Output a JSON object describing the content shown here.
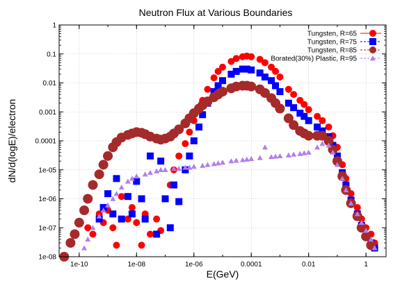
{
  "chart_data": {
    "type": "scatter",
    "title": "Neutron Flux at Various Boundaries",
    "xlabel": "E(GeV)",
    "ylabel": "dN/d(logE)/electron",
    "xscale": "log",
    "yscale": "log",
    "xlim": [
      2e-11,
      5
    ],
    "ylim": [
      1e-08,
      1
    ],
    "grid": true,
    "legend_position": "top-right",
    "x_ticks": [
      "1e-10",
      "1e-08",
      "1e-06",
      "0.0001",
      "0.01",
      "1"
    ],
    "y_ticks": [
      "1e-08",
      "1e-07",
      "1e-06",
      "1e-05",
      "0.0001",
      "0.001",
      "0.01",
      "0.1",
      "1"
    ],
    "series": [
      {
        "name": "Tungsten, R=65",
        "color": "#ff0000",
        "marker": "circle",
        "points": [
          [
            2e-10,
            1e-07
          ],
          [
            3e-10,
            6e-08
          ],
          [
            5e-10,
            3e-07
          ],
          [
            7e-10,
            1.5e-07
          ],
          [
            1e-09,
            4e-07
          ],
          [
            1.5e-09,
            1e-07
          ],
          [
            2e-09,
            2.5e-08
          ],
          [
            3e-09,
            1.2e-06
          ],
          [
            5e-09,
            2e-07
          ],
          [
            7e-09,
            5e-07
          ],
          [
            1e-08,
            1.5e-07
          ],
          [
            1.5e-08,
            2.5e-08
          ],
          [
            2e-08,
            3e-07
          ],
          [
            3e-08,
            6e-08
          ],
          [
            5e-08,
            2e-07
          ],
          [
            7e-08,
            8e-08
          ],
          [
            1e-07,
            1e-06
          ],
          [
            1.5e-07,
            3e-06
          ],
          [
            2e-07,
            1e-05
          ],
          [
            3e-07,
            3e-05
          ],
          [
            5e-07,
            8e-05
          ],
          [
            7e-07,
            0.0002
          ],
          [
            1e-06,
            0.0005
          ],
          [
            1.5e-06,
            0.0012
          ],
          [
            2e-06,
            0.0025
          ],
          [
            3e-06,
            0.006
          ],
          [
            5e-06,
            0.015
          ],
          [
            7e-06,
            0.025
          ],
          [
            1e-05,
            0.035
          ],
          [
            2e-05,
            0.055
          ],
          [
            3e-05,
            0.07
          ],
          [
            5e-05,
            0.08
          ],
          [
            7e-05,
            0.085
          ],
          [
            0.0001,
            0.08
          ],
          [
            0.0002,
            0.065
          ],
          [
            0.0003,
            0.05
          ],
          [
            0.0005,
            0.035
          ],
          [
            0.0007,
            0.025
          ],
          [
            0.001,
            0.016
          ],
          [
            0.002,
            0.006
          ],
          [
            0.003,
            0.004
          ],
          [
            0.005,
            0.0025
          ],
          [
            0.007,
            0.0018
          ],
          [
            0.01,
            0.0012
          ],
          [
            0.02,
            0.0007
          ],
          [
            0.03,
            0.0005
          ],
          [
            0.05,
            0.0003
          ],
          [
            0.07,
            0.00015
          ],
          [
            0.1,
            6e-05
          ],
          [
            0.15,
            1.5e-05
          ],
          [
            0.2,
            5e-06
          ],
          [
            0.3,
            1.5e-06
          ],
          [
            0.5,
            5e-07
          ],
          [
            0.7,
            2e-07
          ],
          [
            1,
            1e-07
          ],
          [
            1.5,
            6e-08
          ],
          [
            2,
            3e-08
          ]
        ]
      },
      {
        "name": "Tungsten, R=75",
        "color": "#0000ff",
        "marker": "square",
        "points": [
          [
            5e-10,
            2e-07
          ],
          [
            7e-10,
            5e-07
          ],
          [
            1e-09,
            1.5e-06
          ],
          [
            1.5e-09,
            3e-07
          ],
          [
            2e-09,
            5e-06
          ],
          [
            3e-09,
            2e-07
          ],
          [
            5e-09,
            1.2e-06
          ],
          [
            7e-09,
            3e-07
          ],
          [
            1e-08,
            4e-06
          ],
          [
            1.5e-08,
            1e-06
          ],
          [
            2e-08,
            2e-07
          ],
          [
            3e-08,
            3e-05
          ],
          [
            5e-08,
            6e-08
          ],
          [
            7e-08,
            2e-05
          ],
          [
            1e-07,
            1e-06
          ],
          [
            1.5e-07,
            1e-07
          ],
          [
            2e-07,
            3e-06
          ],
          [
            3e-07,
            8e-07
          ],
          [
            5e-07,
            1e-05
          ],
          [
            7e-07,
            3e-05
          ],
          [
            1e-06,
            0.0001
          ],
          [
            1.5e-06,
            0.0003
          ],
          [
            2e-06,
            0.0008
          ],
          [
            3e-06,
            0.002
          ],
          [
            5e-06,
            0.005
          ],
          [
            7e-06,
            0.008
          ],
          [
            1e-05,
            0.012
          ],
          [
            2e-05,
            0.02
          ],
          [
            3e-05,
            0.025
          ],
          [
            5e-05,
            0.03
          ],
          [
            7e-05,
            0.03
          ],
          [
            0.0001,
            0.028
          ],
          [
            0.0002,
            0.022
          ],
          [
            0.0003,
            0.016
          ],
          [
            0.0005,
            0.012
          ],
          [
            0.0007,
            0.008
          ],
          [
            0.001,
            0.005
          ],
          [
            0.002,
            0.002
          ],
          [
            0.003,
            0.0014
          ],
          [
            0.005,
            0.0009
          ],
          [
            0.007,
            0.0007
          ],
          [
            0.01,
            0.0005
          ],
          [
            0.02,
            0.0003
          ],
          [
            0.03,
            0.00022
          ],
          [
            0.05,
            0.00014
          ],
          [
            0.07,
            7e-05
          ],
          [
            0.1,
            3e-05
          ],
          [
            0.15,
            8e-06
          ],
          [
            0.2,
            3e-06
          ],
          [
            0.3,
            9e-07
          ],
          [
            0.5,
            3e-07
          ],
          [
            0.7,
            1.2e-07
          ],
          [
            1,
            5e-08
          ],
          [
            1.5,
            3e-08
          ],
          [
            2,
            2e-08
          ]
        ]
      },
      {
        "name": "Tungsten, R=85",
        "color": "#a52a2a",
        "marker": "circle",
        "points": [
          [
            3e-11,
            1e-08
          ],
          [
            5e-11,
            3e-08
          ],
          [
            7e-11,
            6e-08
          ],
          [
            1e-10,
            1.5e-07
          ],
          [
            1.5e-10,
            4e-07
          ],
          [
            2e-10,
            1e-06
          ],
          [
            3e-10,
            3e-06
          ],
          [
            5e-10,
            7e-06
          ],
          [
            7e-10,
            1.5e-05
          ],
          [
            1e-09,
            3e-05
          ],
          [
            1.5e-09,
            6e-05
          ],
          [
            2e-09,
            9e-05
          ],
          [
            3e-09,
            0.00013
          ],
          [
            5e-09,
            0.00016
          ],
          [
            7e-09,
            0.00018
          ],
          [
            1e-08,
            0.0002
          ],
          [
            1.5e-08,
            0.00019
          ],
          [
            2e-08,
            0.00017
          ],
          [
            3e-08,
            0.00014
          ],
          [
            5e-08,
            0.00012
          ],
          [
            7e-08,
            0.00011
          ],
          [
            1e-07,
            0.00012
          ],
          [
            1.5e-07,
            0.00014
          ],
          [
            2e-07,
            0.00018
          ],
          [
            3e-07,
            0.00025
          ],
          [
            5e-07,
            0.0004
          ],
          [
            7e-07,
            0.0006
          ],
          [
            1e-06,
            0.0009
          ],
          [
            1.5e-06,
            0.0013
          ],
          [
            2e-06,
            0.0017
          ],
          [
            3e-06,
            0.0023
          ],
          [
            5e-06,
            0.0032
          ],
          [
            7e-06,
            0.004
          ],
          [
            1e-05,
            0.005
          ],
          [
            2e-05,
            0.0065
          ],
          [
            3e-05,
            0.0075
          ],
          [
            5e-05,
            0.008
          ],
          [
            7e-05,
            0.008
          ],
          [
            0.0001,
            0.0075
          ],
          [
            0.0002,
            0.006
          ],
          [
            0.0003,
            0.0045
          ],
          [
            0.0005,
            0.003
          ],
          [
            0.0007,
            0.002
          ],
          [
            0.001,
            0.0013
          ],
          [
            0.002,
            0.0006
          ],
          [
            0.003,
            0.00035
          ],
          [
            0.005,
            0.00022
          ],
          [
            0.007,
            0.00018
          ],
          [
            0.01,
            0.00015
          ],
          [
            0.02,
            0.00015
          ],
          [
            0.03,
            0.00015
          ],
          [
            0.05,
            0.0001
          ],
          [
            0.07,
            5e-05
          ],
          [
            0.1,
            2e-05
          ],
          [
            0.15,
            6e-06
          ],
          [
            0.2,
            2e-06
          ],
          [
            0.3,
            7e-07
          ],
          [
            0.5,
            2.5e-07
          ],
          [
            0.7,
            1e-07
          ],
          [
            1,
            5e-08
          ],
          [
            1.5,
            2.5e-08
          ]
        ]
      },
      {
        "name": "Borated(30%) Plastic, R=95",
        "color": "#b27fee",
        "marker": "triangle",
        "points": [
          [
            1e-10,
            8e-09
          ],
          [
            1.5e-10,
            2e-08
          ],
          [
            2e-10,
            4e-08
          ],
          [
            3e-10,
            1e-07
          ],
          [
            5e-10,
            2.5e-07
          ],
          [
            7e-10,
            4e-07
          ],
          [
            1e-09,
            6e-07
          ],
          [
            1.5e-09,
            1e-06
          ],
          [
            2e-09,
            1.5e-06
          ],
          [
            3e-09,
            2.5e-06
          ],
          [
            5e-09,
            4e-06
          ],
          [
            7e-09,
            5e-06
          ],
          [
            1e-08,
            6e-06
          ],
          [
            2e-08,
            7e-06
          ],
          [
            3e-08,
            8e-06
          ],
          [
            5e-08,
            9e-06
          ],
          [
            7e-08,
            1e-05
          ],
          [
            1e-07,
            1e-05
          ],
          [
            2e-07,
            1.1e-05
          ],
          [
            3e-07,
            1.1e-05
          ],
          [
            5e-07,
            1.2e-05
          ],
          [
            7e-07,
            1.2e-05
          ],
          [
            1e-06,
            1.3e-05
          ],
          [
            2e-06,
            1.4e-05
          ],
          [
            3e-06,
            1.5e-05
          ],
          [
            5e-06,
            1.6e-05
          ],
          [
            7e-06,
            1.7e-05
          ],
          [
            1e-05,
            1.8e-05
          ],
          [
            2e-05,
            2e-05
          ],
          [
            3e-05,
            2.1e-05
          ],
          [
            5e-05,
            2.2e-05
          ],
          [
            7e-05,
            2.3e-05
          ],
          [
            0.0001,
            2.4e-05
          ],
          [
            0.0002,
            2.6e-05
          ],
          [
            0.0003,
            6e-05
          ],
          [
            0.0005,
            2.8e-05
          ],
          [
            0.0007,
            2.9e-05
          ],
          [
            0.001,
            3e-05
          ],
          [
            0.002,
            3.2e-05
          ],
          [
            0.003,
            3.4e-05
          ],
          [
            0.005,
            3.6e-05
          ],
          [
            0.007,
            3.8e-05
          ],
          [
            0.01,
            4e-05
          ],
          [
            0.02,
            6e-05
          ],
          [
            0.03,
            8e-05
          ],
          [
            0.05,
            7e-05
          ],
          [
            0.07,
            4e-05
          ],
          [
            0.1,
            1.5e-05
          ],
          [
            0.15,
            5e-06
          ],
          [
            0.2,
            2e-06
          ],
          [
            0.3,
            7e-07
          ],
          [
            0.5,
            3e-07
          ],
          [
            0.7,
            1.5e-07
          ],
          [
            1,
            8e-08
          ],
          [
            1.5,
            4e-08
          ],
          [
            2,
            2e-08
          ]
        ]
      }
    ]
  }
}
